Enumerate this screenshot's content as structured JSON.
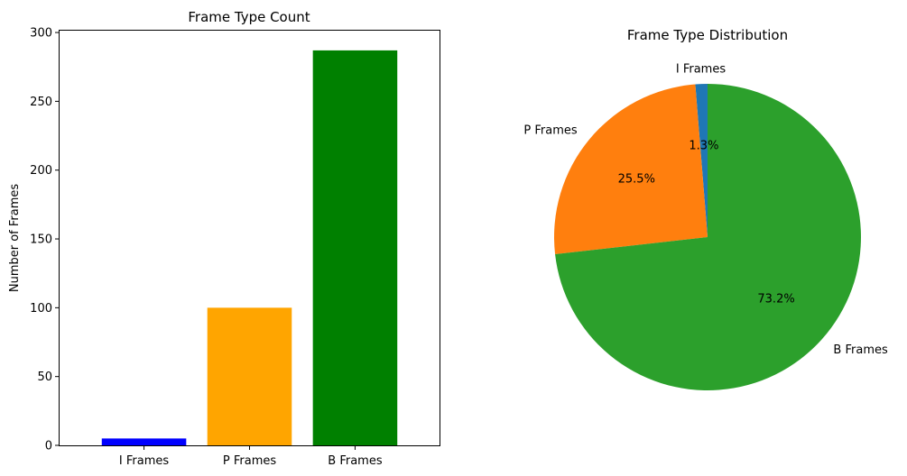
{
  "chart_data": [
    {
      "type": "bar",
      "title": "Frame Type Count",
      "xlabel": "",
      "ylabel": "Number of Frames",
      "categories": [
        "I Frames",
        "P Frames",
        "B Frames"
      ],
      "values": [
        5,
        100,
        287
      ],
      "colors": [
        "#0000ff",
        "#ffa500",
        "#008000"
      ],
      "ylim": [
        0,
        301.35
      ],
      "yticks": [
        0,
        50,
        100,
        150,
        200,
        250,
        300
      ],
      "grid": false
    },
    {
      "type": "pie",
      "title": "Frame Type Distribution",
      "labels": [
        "I Frames",
        "P Frames",
        "B Frames"
      ],
      "values": [
        5,
        100,
        287
      ],
      "percent_labels": [
        "1.3%",
        "25.5%",
        "73.2%"
      ],
      "colors": [
        "#1f77b4",
        "#ff7f0e",
        "#2ca02c"
      ],
      "start_angle_deg": 90
    }
  ]
}
